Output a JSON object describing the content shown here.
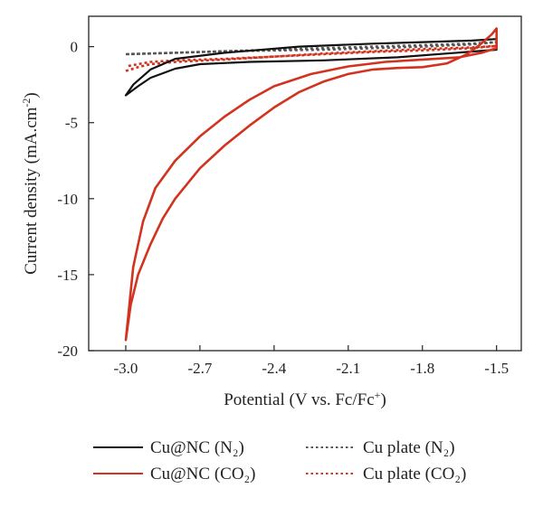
{
  "chart_data": {
    "type": "line",
    "title": "",
    "xlabel": "Potential (V vs. Fc/Fc",
    "xlabel_sup": "+",
    "xlabel_end": ")",
    "ylabel": "Current density (mA.cm",
    "ylabel_sup": "-2",
    "ylabel_end": ")",
    "xlim": [
      -3.15,
      -1.4
    ],
    "ylim": [
      -20,
      2
    ],
    "x_ticks": [
      -3.0,
      -2.7,
      -2.4,
      -2.1,
      -1.8,
      -1.5
    ],
    "x_tick_labels": [
      "-3.0",
      "-2.7",
      "-2.4",
      "-2.1",
      "-1.8",
      "-1.5"
    ],
    "y_ticks": [
      0,
      -5,
      -10,
      -15,
      -20
    ],
    "y_tick_labels": [
      "0",
      "-5",
      "-10",
      "-15",
      "-20"
    ],
    "legend_position": "bottom",
    "series": [
      {
        "name": "Cu@NC (N₂)",
        "color": "#111111",
        "style": "solid",
        "points": [
          [
            -3.0,
            -3.2
          ],
          [
            -2.95,
            -2.6
          ],
          [
            -2.9,
            -2.05
          ],
          [
            -2.8,
            -1.45
          ],
          [
            -2.7,
            -1.15
          ],
          [
            -2.5,
            -1.0
          ],
          [
            -2.2,
            -0.9
          ],
          [
            -1.9,
            -0.7
          ],
          [
            -1.7,
            -0.45
          ],
          [
            -1.5,
            -0.2
          ],
          [
            -1.5,
            0.5
          ],
          [
            -1.6,
            0.4
          ],
          [
            -1.8,
            0.3
          ],
          [
            -2.0,
            0.2
          ],
          [
            -2.3,
            0.0
          ],
          [
            -2.6,
            -0.4
          ],
          [
            -2.8,
            -0.8
          ],
          [
            -2.9,
            -1.5
          ],
          [
            -2.97,
            -2.5
          ],
          [
            -3.0,
            -3.2
          ]
        ]
      },
      {
        "name": "Cu@NC (CO₂)",
        "color": "#d1331f",
        "style": "solid",
        "points": [
          [
            -3.0,
            -19.3
          ],
          [
            -2.98,
            -17.0
          ],
          [
            -2.95,
            -15.0
          ],
          [
            -2.9,
            -13.0
          ],
          [
            -2.85,
            -11.3
          ],
          [
            -2.8,
            -10.0
          ],
          [
            -2.7,
            -8.0
          ],
          [
            -2.6,
            -6.5
          ],
          [
            -2.5,
            -5.2
          ],
          [
            -2.4,
            -4.0
          ],
          [
            -2.3,
            -3.0
          ],
          [
            -2.2,
            -2.3
          ],
          [
            -2.1,
            -1.8
          ],
          [
            -2.0,
            -1.5
          ],
          [
            -1.9,
            -1.4
          ],
          [
            -1.8,
            -1.35
          ],
          [
            -1.7,
            -1.1
          ],
          [
            -1.62,
            -0.5
          ],
          [
            -1.57,
            0.1
          ],
          [
            -1.52,
            0.8
          ],
          [
            -1.5,
            1.2
          ],
          [
            -1.5,
            -0.1
          ],
          [
            -1.56,
            -0.4
          ],
          [
            -1.65,
            -0.7
          ],
          [
            -1.8,
            -0.85
          ],
          [
            -1.95,
            -1.0
          ],
          [
            -2.1,
            -1.3
          ],
          [
            -2.25,
            -1.8
          ],
          [
            -2.4,
            -2.6
          ],
          [
            -2.5,
            -3.5
          ],
          [
            -2.6,
            -4.6
          ],
          [
            -2.7,
            -5.9
          ],
          [
            -2.8,
            -7.5
          ],
          [
            -2.88,
            -9.3
          ],
          [
            -2.93,
            -11.5
          ],
          [
            -2.97,
            -14.5
          ],
          [
            -3.0,
            -19.3
          ]
        ]
      },
      {
        "name": "Cu plate (N₂)",
        "color": "#555555",
        "style": "dotted",
        "points": [
          [
            -3.0,
            -0.5
          ],
          [
            -2.8,
            -0.4
          ],
          [
            -2.6,
            -0.3
          ],
          [
            -2.4,
            -0.2
          ],
          [
            -2.2,
            -0.1
          ],
          [
            -2.0,
            0.0
          ],
          [
            -1.8,
            0.1
          ],
          [
            -1.6,
            0.2
          ],
          [
            -1.5,
            0.3
          ],
          [
            -1.6,
            0.15
          ],
          [
            -1.8,
            0.0
          ],
          [
            -2.0,
            -0.1
          ],
          [
            -2.2,
            -0.2
          ],
          [
            -2.4,
            -0.25
          ],
          [
            -2.6,
            -0.3
          ],
          [
            -2.8,
            -0.4
          ],
          [
            -3.0,
            -0.5
          ]
        ]
      },
      {
        "name": "Cu plate (CO₂)",
        "color": "#d1331f",
        "style": "dotted",
        "points": [
          [
            -3.0,
            -1.6
          ],
          [
            -2.95,
            -1.35
          ],
          [
            -2.9,
            -1.15
          ],
          [
            -2.8,
            -1.0
          ],
          [
            -2.6,
            -0.85
          ],
          [
            -2.4,
            -0.65
          ],
          [
            -2.2,
            -0.45
          ],
          [
            -2.0,
            -0.3
          ],
          [
            -1.8,
            -0.15
          ],
          [
            -1.6,
            -0.05
          ],
          [
            -1.5,
            0.05
          ],
          [
            -1.6,
            -0.1
          ],
          [
            -1.8,
            -0.25
          ],
          [
            -2.0,
            -0.35
          ],
          [
            -2.2,
            -0.5
          ],
          [
            -2.4,
            -0.65
          ],
          [
            -2.6,
            -0.8
          ],
          [
            -2.8,
            -0.9
          ],
          [
            -2.9,
            -1.0
          ],
          [
            -3.0,
            -1.3
          ]
        ]
      }
    ]
  }
}
